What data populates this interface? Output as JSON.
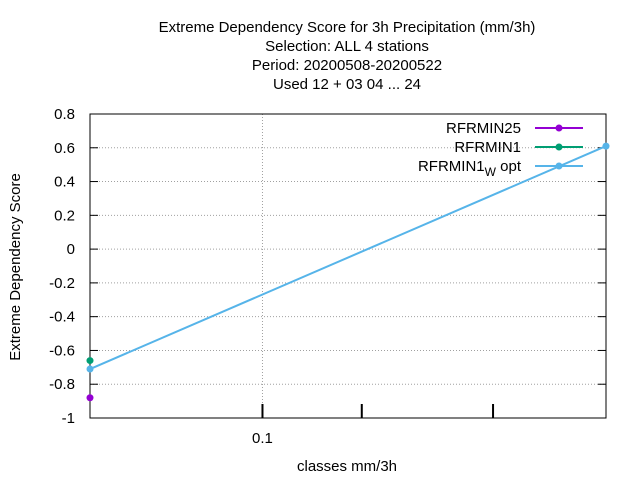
{
  "chart_data": {
    "type": "line",
    "title_lines": [
      "Extreme Dependency Score  for 3h Precipitation (mm/3h)",
      "Selection: ALL      4 stations",
      "Period: 20200508-20200522",
      "Used  12 + 03 04 ... 24"
    ],
    "xlabel": "classes mm/3h",
    "ylabel": "Extreme Dependency Score",
    "x_scale": "log",
    "xlim": [
      0.03,
      1.1
    ],
    "ylim": [
      -1,
      0.8
    ],
    "x_ticks": [
      0.1
    ],
    "x_tick_labels": [
      "0.1"
    ],
    "x_minor_ticks": [
      0.2,
      0.5
    ],
    "y_ticks": [
      -1,
      -0.8,
      -0.6,
      -0.4,
      -0.2,
      0,
      0.2,
      0.4,
      0.6,
      0.8
    ],
    "y_tick_labels": [
      "-1",
      "-0.8",
      "-0.6",
      "-0.4",
      "-0.2",
      "0",
      "0.2",
      "0.4",
      "0.6",
      "0.8"
    ],
    "grid": true,
    "legend_position": "top-right",
    "series": [
      {
        "name": "RFRMIN25",
        "color": "#9400d3",
        "x": [
          0.03
        ],
        "y": [
          -0.88
        ]
      },
      {
        "name": "RFRMIN1",
        "color": "#009e73",
        "x": [
          0.03
        ],
        "y": [
          -0.66
        ]
      },
      {
        "name": "RFRMIN1",
        "name_sub": "W",
        "name_suffix": "opt",
        "color": "#56b4e9",
        "x": [
          0.03,
          1.1
        ],
        "y": [
          -0.71,
          0.61
        ]
      }
    ]
  }
}
